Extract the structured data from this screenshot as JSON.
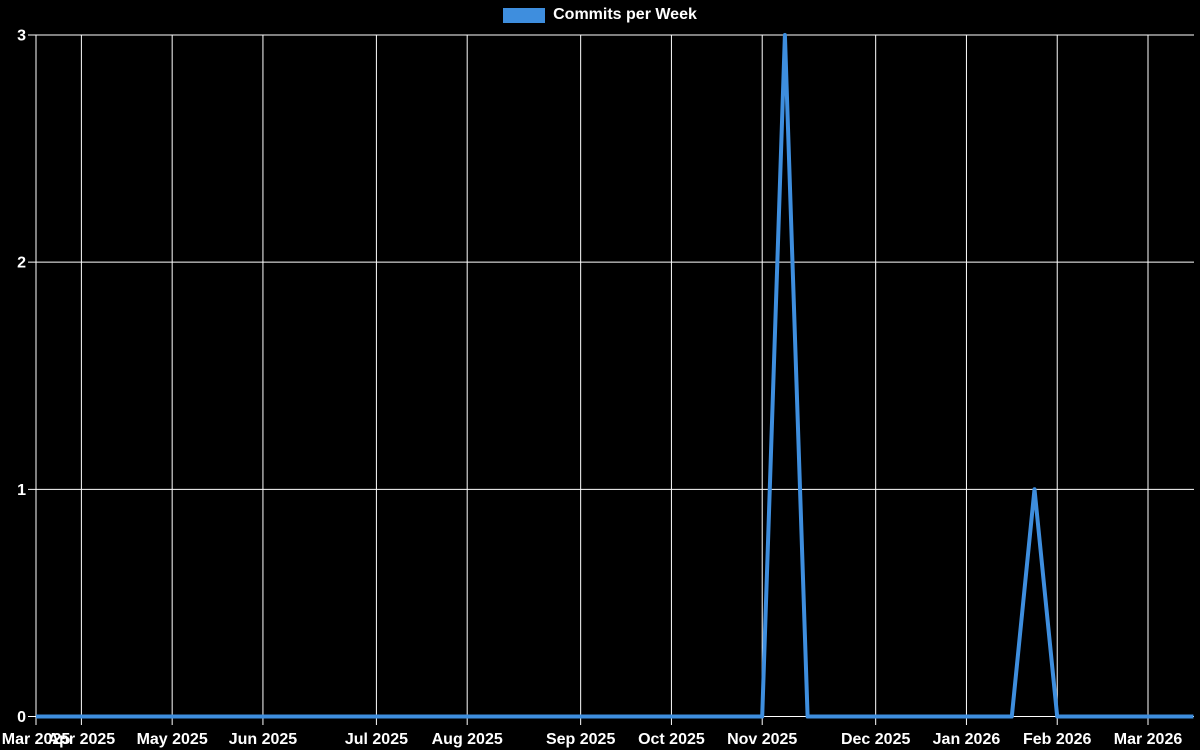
{
  "legend": {
    "label": "Commits per Week",
    "swatch_color": "#3e8ede",
    "position": "top"
  },
  "chart_data": {
    "type": "line",
    "title": "",
    "x_unit": "week",
    "categories_note": "weekly data points; ticks mark the first weekly point of each month",
    "x_tick_labels": [
      "Mar 2025",
      "Apr 2025",
      "May 2025",
      "Jun 2025",
      "Jul 2025",
      "Aug 2025",
      "Sep 2025",
      "Oct 2025",
      "Nov 2025",
      "Dec 2025",
      "Jan 2026",
      "Feb 2026",
      "Mar 2026"
    ],
    "x_tick_week_indices": [
      0,
      2,
      6,
      10,
      15,
      19,
      24,
      28,
      32,
      37,
      41,
      45,
      49
    ],
    "y_ticks": [
      0,
      1,
      2,
      3
    ],
    "ylim": [
      0,
      3
    ],
    "grid": true,
    "legend_position": "top-center",
    "series": [
      {
        "name": "Commits per Week",
        "color": "#3e8ede",
        "line_width": 4,
        "values": [
          0,
          0,
          0,
          0,
          0,
          0,
          0,
          0,
          0,
          0,
          0,
          0,
          0,
          0,
          0,
          0,
          0,
          0,
          0,
          0,
          0,
          0,
          0,
          0,
          0,
          0,
          0,
          0,
          0,
          0,
          0,
          0,
          0,
          3,
          0,
          0,
          0,
          0,
          0,
          0,
          0,
          0,
          0,
          0,
          1,
          0,
          0,
          0,
          0,
          0,
          0,
          0
        ]
      }
    ],
    "colors": {
      "background": "#000000",
      "grid": "#ffffff",
      "axis_text": "#ffffff",
      "line": "#3e8ede"
    }
  }
}
